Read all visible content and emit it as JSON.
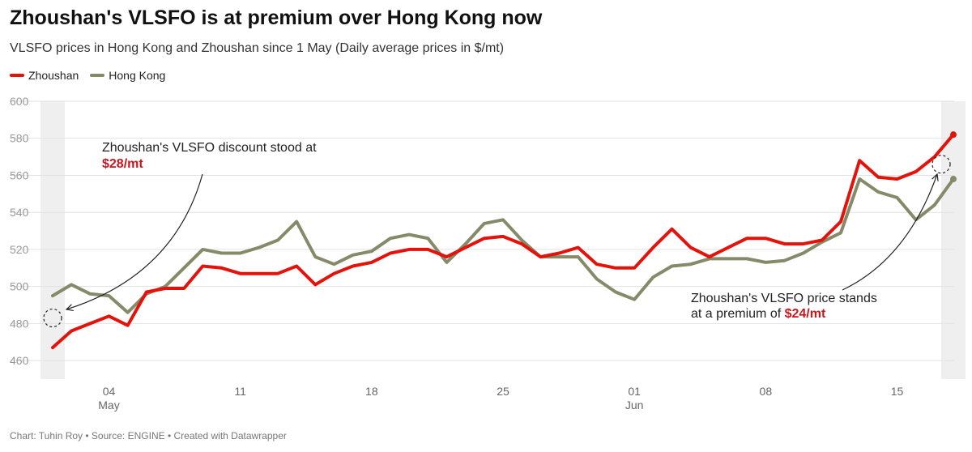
{
  "header": {
    "title": "Zhoushan's VLSFO is at premium over Hong Kong now",
    "subtitle": "VLSFO prices in Hong Kong and Zhoushan since 1 May (Daily average prices in $/mt)"
  },
  "footer": {
    "credit": "Chart: Tuhin Roy • Source: ENGINE • Created with Datawrapper"
  },
  "colors": {
    "zhoushan": "#e3120b",
    "hongkong": "#858a68",
    "highlight_band": "#efefef",
    "grid": "#e2e2e2"
  },
  "chart_data": {
    "type": "line",
    "title": "Zhoushan's VLSFO is at premium over Hong Kong now",
    "ylim": [
      450,
      600
    ],
    "yticks": [
      460,
      480,
      500,
      520,
      540,
      560,
      580,
      600
    ],
    "grid": "horizontal",
    "legend_position": "top-left",
    "x_day_range": [
      1,
      49
    ],
    "xticks": [
      {
        "day": 4,
        "label": "04",
        "month": "May"
      },
      {
        "day": 11,
        "label": "11",
        "month": ""
      },
      {
        "day": 18,
        "label": "18",
        "month": ""
      },
      {
        "day": 25,
        "label": "25",
        "month": ""
      },
      {
        "day": 32,
        "label": "01",
        "month": "Jun"
      },
      {
        "day": 39,
        "label": "08",
        "month": ""
      },
      {
        "day": 46,
        "label": "15",
        "month": ""
      }
    ],
    "highlight_days": [
      1,
      49
    ],
    "series": [
      {
        "name": "Zhoushan",
        "color": "#e3120b",
        "points": [
          [
            1,
            467
          ],
          [
            2,
            476
          ],
          [
            3,
            480
          ],
          [
            4,
            484
          ],
          [
            5,
            479
          ],
          [
            6,
            497
          ],
          [
            7,
            499
          ],
          [
            8,
            499
          ],
          [
            9,
            511
          ],
          [
            10,
            510
          ],
          [
            11,
            507
          ],
          [
            12,
            507
          ],
          [
            13,
            507
          ],
          [
            14,
            511
          ],
          [
            15,
            501
          ],
          [
            16,
            507
          ],
          [
            17,
            511
          ],
          [
            18,
            513
          ],
          [
            19,
            518
          ],
          [
            20,
            520
          ],
          [
            21,
            520
          ],
          [
            22,
            516
          ],
          [
            23,
            521
          ],
          [
            24,
            526
          ],
          [
            25,
            527
          ],
          [
            26,
            523
          ],
          [
            27,
            516
          ],
          [
            28,
            518
          ],
          [
            29,
            521
          ],
          [
            30,
            512
          ],
          [
            31,
            510
          ],
          [
            32,
            510
          ],
          [
            33,
            521
          ],
          [
            34,
            531
          ],
          [
            35,
            521
          ],
          [
            36,
            516
          ],
          [
            37,
            521
          ],
          [
            38,
            526
          ],
          [
            39,
            526
          ],
          [
            40,
            523
          ],
          [
            41,
            523
          ],
          [
            42,
            525
          ],
          [
            43,
            535
          ],
          [
            44,
            568
          ],
          [
            45,
            559
          ],
          [
            46,
            558
          ],
          [
            47,
            562
          ],
          [
            48,
            570
          ],
          [
            49,
            582
          ]
        ]
      },
      {
        "name": "Hong Kong",
        "color": "#858a68",
        "points": [
          [
            1,
            495
          ],
          [
            2,
            501
          ],
          [
            3,
            496
          ],
          [
            4,
            495
          ],
          [
            5,
            486
          ],
          [
            6,
            496
          ],
          [
            7,
            500
          ],
          [
            8,
            510
          ],
          [
            9,
            520
          ],
          [
            10,
            518
          ],
          [
            11,
            518
          ],
          [
            12,
            521
          ],
          [
            13,
            525
          ],
          [
            14,
            535
          ],
          [
            15,
            516
          ],
          [
            16,
            512
          ],
          [
            17,
            517
          ],
          [
            18,
            519
          ],
          [
            19,
            526
          ],
          [
            20,
            528
          ],
          [
            21,
            526
          ],
          [
            22,
            513
          ],
          [
            23,
            523
          ],
          [
            24,
            534
          ],
          [
            25,
            536
          ],
          [
            26,
            525
          ],
          [
            27,
            516
          ],
          [
            28,
            516
          ],
          [
            29,
            516
          ],
          [
            30,
            504
          ],
          [
            31,
            497
          ],
          [
            32,
            493
          ],
          [
            33,
            505
          ],
          [
            34,
            511
          ],
          [
            35,
            512
          ],
          [
            36,
            515
          ],
          [
            37,
            515
          ],
          [
            38,
            515
          ],
          [
            39,
            513
          ],
          [
            40,
            514
          ],
          [
            41,
            518
          ],
          [
            42,
            524
          ],
          [
            43,
            529
          ],
          [
            44,
            558
          ],
          [
            45,
            551
          ],
          [
            46,
            548
          ],
          [
            47,
            536
          ],
          [
            48,
            544
          ],
          [
            49,
            558
          ]
        ]
      }
    ],
    "annotations": [
      {
        "line1": "Zhoushan's VLSFO discount stood at",
        "line2_prefix": "",
        "highlight": "$28/mt"
      },
      {
        "line1": "Zhoushan's VLSFO price stands",
        "line2_prefix": "at a premium of ",
        "highlight": "$24/mt"
      }
    ]
  }
}
